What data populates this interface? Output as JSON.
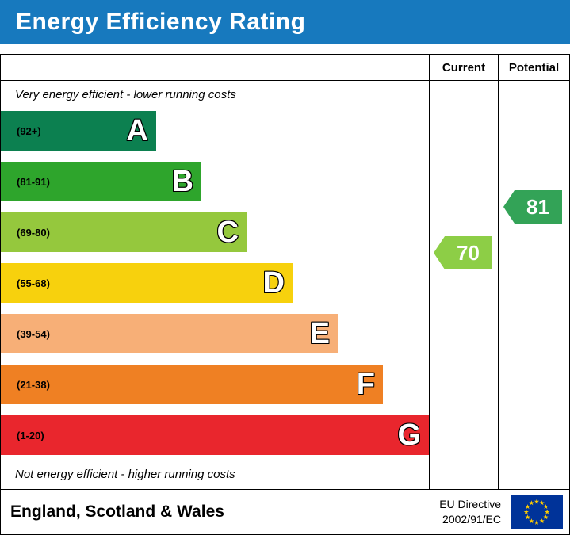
{
  "title": "Energy Efficiency Rating",
  "columns": {
    "current": "Current",
    "potential": "Potential"
  },
  "notes": {
    "top": "Very energy efficient - lower running costs",
    "bottom": "Not energy efficient - higher running costs"
  },
  "footer": {
    "region": "England, Scotland & Wales",
    "directive_line1": "EU Directive",
    "directive_line2": "2002/91/EC",
    "flag": "eu-flag"
  },
  "colors": {
    "header_bg": "#1779be",
    "border": "#000000",
    "flag_bg": "#003399",
    "flag_star": "#ffcc00"
  },
  "chart_data": {
    "type": "bar",
    "title": "Energy Efficiency Rating",
    "xlabel": "",
    "ylabel": "",
    "legend": [
      "Current",
      "Potential"
    ],
    "bands": [
      {
        "letter": "A",
        "range_label": "(92+)",
        "min": 92,
        "max": 100,
        "color": "#0c8050"
      },
      {
        "letter": "B",
        "range_label": "(81-91)",
        "min": 81,
        "max": 91,
        "color": "#2ea52c"
      },
      {
        "letter": "C",
        "range_label": "(69-80)",
        "min": 69,
        "max": 80,
        "color": "#95c83d"
      },
      {
        "letter": "D",
        "range_label": "(55-68)",
        "min": 55,
        "max": 68,
        "color": "#f7d10d"
      },
      {
        "letter": "E",
        "range_label": "(39-54)",
        "min": 39,
        "max": 54,
        "color": "#f7af77"
      },
      {
        "letter": "F",
        "range_label": "(21-38)",
        "min": 21,
        "max": 38,
        "color": "#ef8023"
      },
      {
        "letter": "G",
        "range_label": "(1-20)",
        "min": 1,
        "max": 20,
        "color": "#e9262d"
      }
    ],
    "ratings": {
      "current": {
        "value": 70,
        "band": "C",
        "color": "#8dce46"
      },
      "potential": {
        "value": 81,
        "band": "B",
        "color": "#33a357"
      }
    }
  }
}
